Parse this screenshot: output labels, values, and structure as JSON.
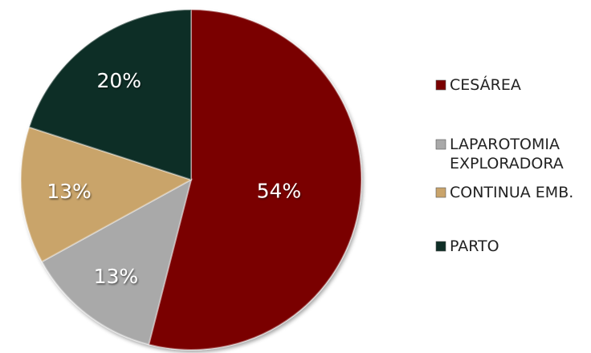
{
  "chart_data": {
    "type": "pie",
    "categories": [
      "CESÁREA",
      "LAPAROTOMIA EXPLORADORA",
      "CONTINUA EMB.",
      "PARTO"
    ],
    "values": [
      54,
      13,
      13,
      20
    ],
    "labels": [
      "54%",
      "13%",
      "13%",
      "20%"
    ],
    "legend": [
      {
        "lines": [
          "CESÁREA"
        ],
        "color": "#7a0000"
      },
      {
        "lines": [
          "LAPAROTOMIA",
          "EXPLORADORA"
        ],
        "color": "#a9a9a9"
      },
      {
        "lines": [
          "CONTINUA EMB."
        ],
        "color": "#c9a46b"
      },
      {
        "lines": [
          "PARTO"
        ],
        "color": "#0f2e26"
      }
    ],
    "colors": [
      "#7a0000",
      "#a9a9a9",
      "#c9a46b",
      "#0f2e26"
    ],
    "legend_position": "right",
    "start": "12 o'clock",
    "direction": "clockwise"
  }
}
